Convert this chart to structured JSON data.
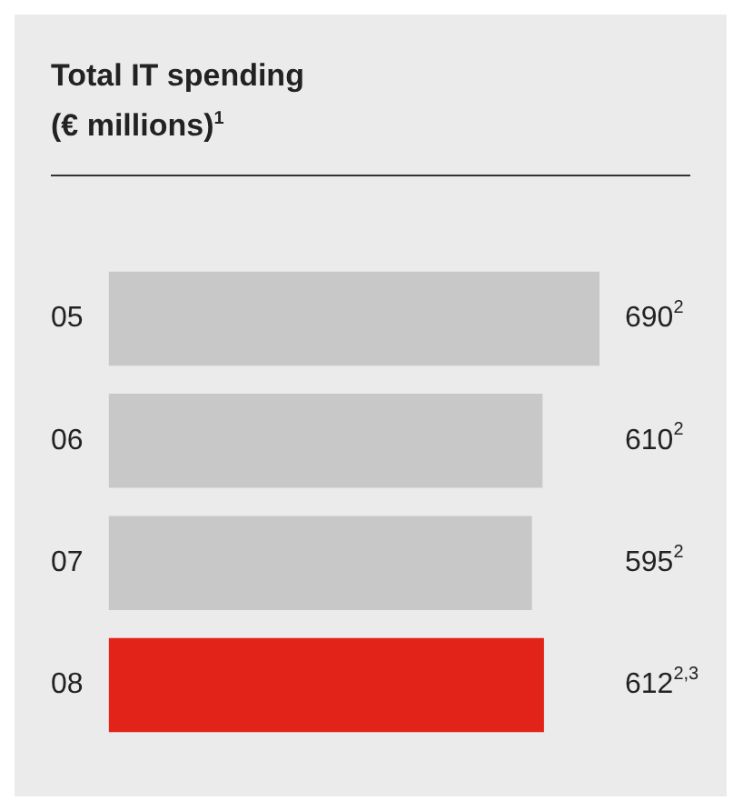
{
  "chart_data": {
    "type": "bar",
    "orientation": "horizontal",
    "title": "Total IT spending\n(€ millions)$^{1}$",
    "categories": [
      "05",
      "06",
      "07",
      "08"
    ],
    "values": [
      690,
      610,
      595,
      612
    ],
    "colors": [
      "#c8c8c8",
      "#c8c8c8",
      "#c8c8c8",
      "#e2231a"
    ],
    "value_labels": [
      "690$^{2}$",
      "610$^{2}$",
      "595$^{2}$",
      "612$^{2,3}$"
    ],
    "legend": false,
    "tick_labels": "y"
  }
}
